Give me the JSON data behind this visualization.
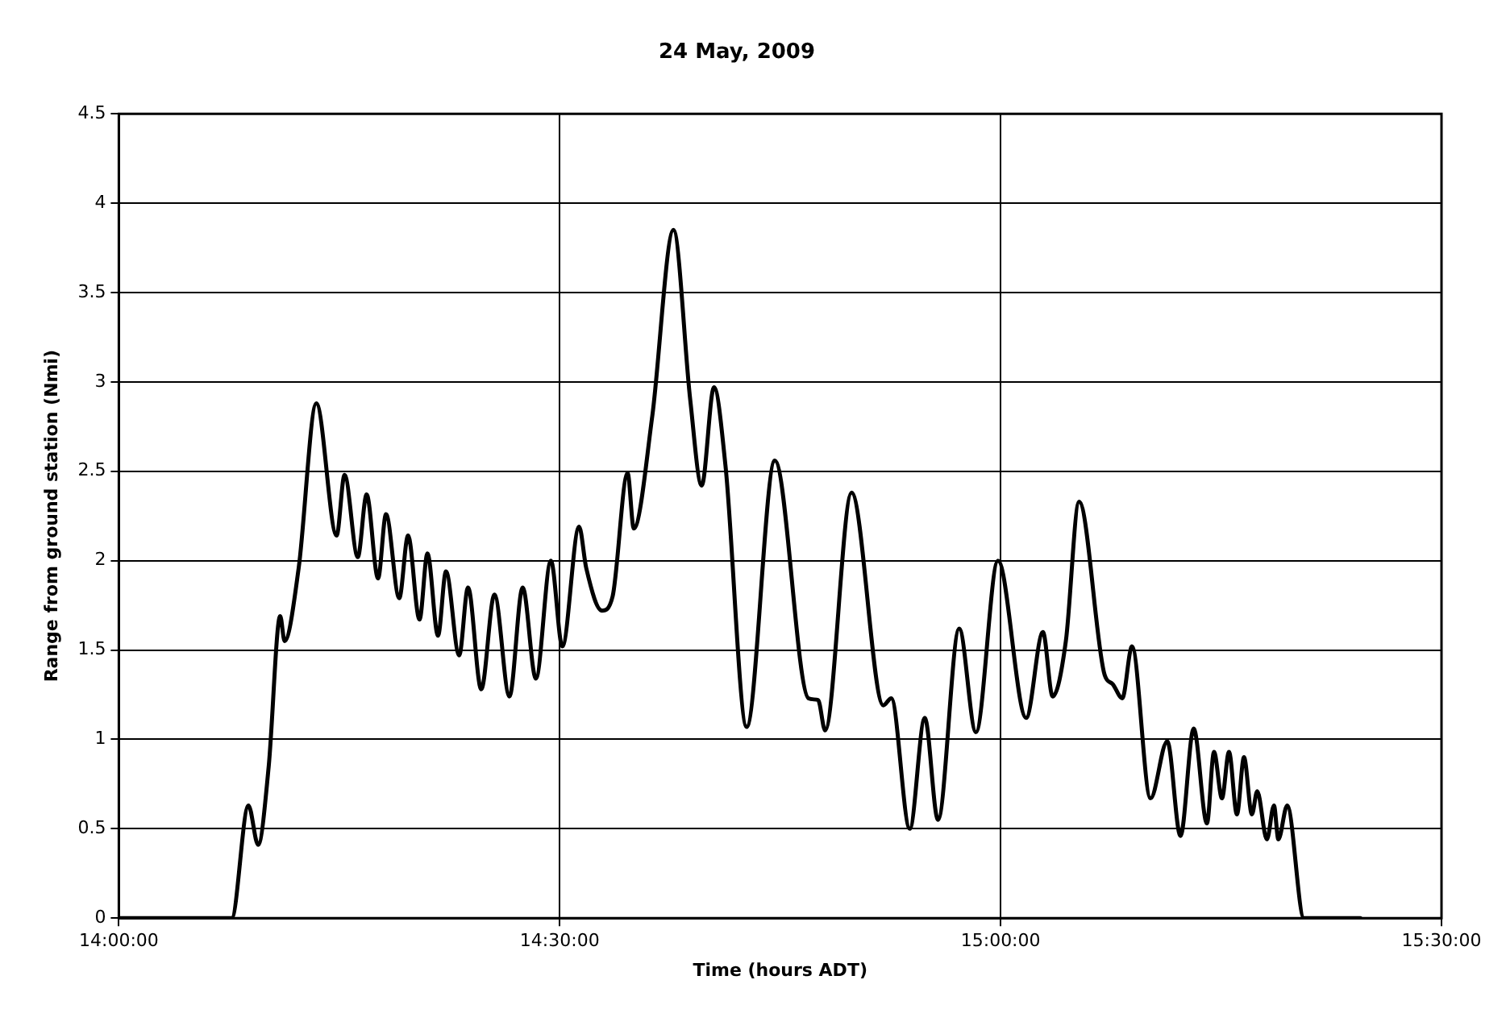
{
  "chart_data": {
    "type": "line",
    "title": "24 May, 2009",
    "xlabel": "Time (hours ADT)",
    "ylabel": "Range from ground station (Nmi)",
    "x": [
      14.0,
      14.128,
      14.147,
      14.158,
      14.17,
      14.183,
      14.188,
      14.204,
      14.224,
      14.247,
      14.256,
      14.271,
      14.281,
      14.294,
      14.303,
      14.318,
      14.328,
      14.341,
      14.35,
      14.362,
      14.371,
      14.386,
      14.396,
      14.411,
      14.426,
      14.443,
      14.458,
      14.473,
      14.49,
      14.503,
      14.522,
      14.53,
      14.548,
      14.56,
      14.577,
      14.584,
      14.605,
      14.629,
      14.648,
      14.661,
      14.675,
      14.688,
      14.712,
      14.744,
      14.782,
      14.793,
      14.801,
      14.831,
      14.867,
      14.876,
      14.897,
      14.914,
      14.929,
      14.953,
      14.972,
      14.997,
      15.029,
      15.048,
      15.059,
      15.074,
      15.089,
      15.118,
      15.127,
      15.138,
      15.149,
      15.17,
      15.189,
      15.204,
      15.219,
      15.234,
      15.242,
      15.251,
      15.259,
      15.268,
      15.276,
      15.285,
      15.291,
      15.302,
      15.31,
      15.315,
      15.325,
      15.344,
      15.408
    ],
    "series": [
      {
        "color": "#000000",
        "values": [
          0,
          0,
          0.63,
          0.41,
          0.85,
          1.69,
          1.55,
          1.96,
          2.88,
          2.14,
          2.48,
          2.02,
          2.37,
          1.9,
          2.26,
          1.79,
          2.14,
          1.67,
          2.04,
          1.58,
          1.94,
          1.47,
          1.85,
          1.28,
          1.81,
          1.24,
          1.85,
          1.34,
          2.0,
          1.52,
          2.19,
          1.96,
          1.72,
          1.8,
          2.49,
          2.18,
          2.81,
          3.85,
          2.9,
          2.42,
          2.97,
          2.53,
          1.07,
          2.56,
          1.23,
          1.22,
          1.05,
          2.38,
          1.19,
          1.23,
          0.5,
          1.12,
          0.55,
          1.62,
          1.04,
          2.0,
          1.12,
          1.6,
          1.24,
          1.55,
          2.33,
          1.36,
          1.31,
          1.23,
          1.52,
          0.67,
          0.99,
          0.46,
          1.06,
          0.53,
          0.93,
          0.67,
          0.93,
          0.58,
          0.9,
          0.58,
          0.71,
          0.44,
          0.63,
          0.44,
          0.63,
          0,
          0
        ]
      }
    ],
    "xlim": [
      14.0,
      15.5
    ],
    "xticks": [
      {
        "value": 14.0,
        "label": "14:00:00"
      },
      {
        "value": 14.5,
        "label": "14:30:00"
      },
      {
        "value": 15.0,
        "label": "15:00:00"
      },
      {
        "value": 15.5,
        "label": "15:30:00"
      }
    ],
    "ylim": [
      0,
      4.5
    ],
    "yticks": [
      0,
      0.5,
      1,
      1.5,
      2,
      2.5,
      3,
      3.5,
      4,
      4.5
    ],
    "grid": true,
    "legend": false,
    "marker": "none",
    "line_style": "solid"
  }
}
